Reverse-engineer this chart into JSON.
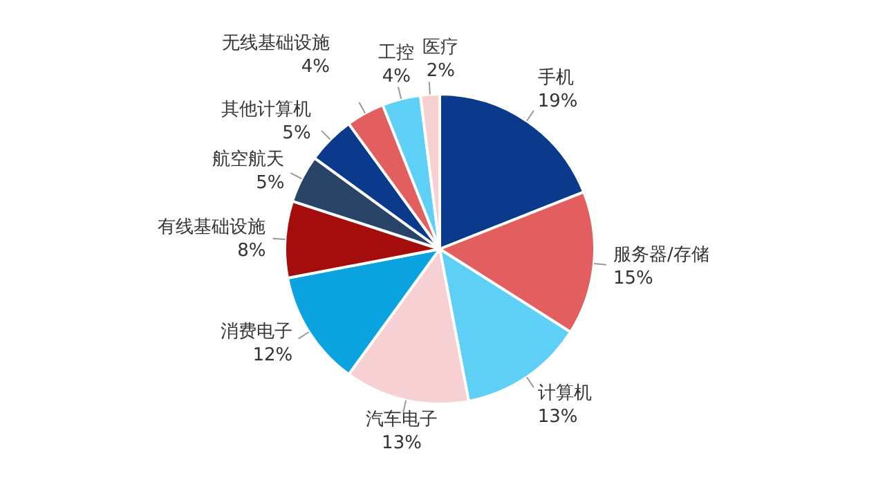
{
  "chart_data": {
    "type": "pie",
    "categories": [
      "手机",
      "服务器/存储",
      "计算机",
      "汽车电子",
      "消费电子",
      "有线基础设施",
      "航空航天",
      "其他计算机",
      "无线基础设施",
      "工控",
      "医疗"
    ],
    "values": [
      19,
      15,
      13,
      13,
      12,
      8,
      5,
      5,
      4,
      4,
      2
    ],
    "colors": [
      "#0b3a8c",
      "#e35e5e",
      "#5ecff5",
      "#f7d0d3",
      "#0aa3e0",
      "#a50d0d",
      "#2a4468",
      "#0b3a8c",
      "#e35e5e",
      "#5ecff5",
      "#f7d0d3"
    ],
    "value_labels": [
      "19%",
      "15%",
      "13%",
      "13%",
      "12%",
      "8%",
      "5%",
      "5%",
      "4%",
      "4%",
      "2%"
    ]
  }
}
